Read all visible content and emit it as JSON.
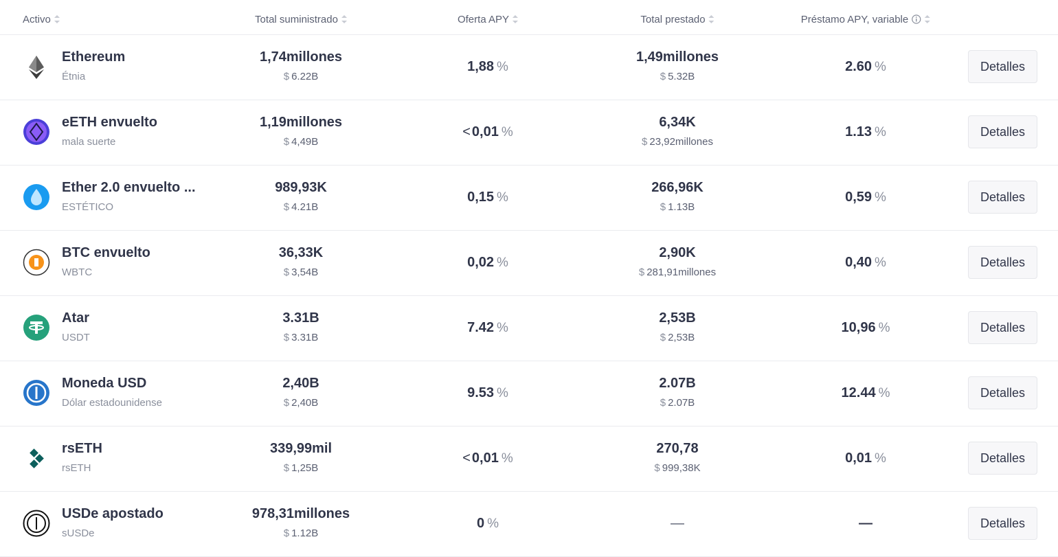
{
  "header": {
    "columns": [
      "Activo",
      "Total suministrado",
      "Oferta APY",
      "Total prestado",
      "Préstamo APY, variable"
    ]
  },
  "table": {
    "rows": [
      {
        "name": "Ethereum",
        "symbol": "Étnia",
        "supplied": "1,74millones",
        "supplied_usd": {
          "sign": "$",
          "value": "6.22B"
        },
        "supply_apy": {
          "value": "1,88",
          "unit": "%"
        },
        "borrowed": "1,49millones",
        "borrowed_usd": {
          "sign": "$",
          "value": "5.32B"
        },
        "borrow_apy": {
          "value": "2.60",
          "unit": "%"
        },
        "action": "Detalles"
      },
      {
        "name": "eETH envuelto",
        "symbol": "mala suerte",
        "supplied": "1,19millones",
        "supplied_usd": {
          "sign": "$",
          "value": "4,49B"
        },
        "supply_apy": {
          "prefix": "<",
          "value": "0,01",
          "unit": "%"
        },
        "borrowed": "6,34K",
        "borrowed_usd": {
          "sign": "$",
          "value": "23,92millones"
        },
        "borrow_apy": {
          "value": "1.13",
          "unit": "%"
        },
        "action": "Detalles"
      },
      {
        "name": "Ether 2.0 envuelto ...",
        "symbol": "ESTÉTICO",
        "supplied": "989,93K",
        "supplied_usd": {
          "sign": "$",
          "value": "4.21B"
        },
        "supply_apy": {
          "value": "0,15",
          "unit": "%"
        },
        "borrowed": "266,96K",
        "borrowed_usd": {
          "sign": "$",
          "value": "1.13B"
        },
        "borrow_apy": {
          "value": "0,59",
          "unit": "%"
        },
        "action": "Detalles"
      },
      {
        "name": "BTC envuelto",
        "symbol": "WBTC",
        "supplied": "36,33K",
        "supplied_usd": {
          "sign": "$",
          "value": "3,54B"
        },
        "supply_apy": {
          "value": "0,02",
          "unit": "%"
        },
        "borrowed": "2,90K",
        "borrowed_usd": {
          "sign": "$",
          "value": "281,91millones"
        },
        "borrow_apy": {
          "value": "0,40",
          "unit": "%"
        },
        "action": "Detalles"
      },
      {
        "name": "Atar",
        "symbol": "USDT",
        "supplied": "3.31B",
        "supplied_usd": {
          "sign": "$",
          "value": "3.31B"
        },
        "supply_apy": {
          "value": "7.42",
          "unit": "%"
        },
        "borrowed": "2,53B",
        "borrowed_usd": {
          "sign": "$",
          "value": "2,53B"
        },
        "borrow_apy": {
          "value": "10,96",
          "unit": "%"
        },
        "action": "Detalles"
      },
      {
        "name": "Moneda USD",
        "symbol": "Dólar estadounidense",
        "supplied": "2,40B",
        "supplied_usd": {
          "sign": "$",
          "value": "2,40B"
        },
        "supply_apy": {
          "value": "9.53",
          "unit": "%"
        },
        "borrowed": "2.07B",
        "borrowed_usd": {
          "sign": "$",
          "value": "2.07B"
        },
        "borrow_apy": {
          "value": "12.44",
          "unit": "%"
        },
        "action": "Detalles"
      },
      {
        "name": "rsETH",
        "symbol": "rsETH",
        "supplied": "339,99mil",
        "supplied_usd": {
          "sign": "$",
          "value": "1,25B"
        },
        "supply_apy": {
          "prefix": "<",
          "value": "0,01",
          "unit": "%"
        },
        "borrowed": "270,78",
        "borrowed_usd": {
          "sign": "$",
          "value": "999,38K"
        },
        "borrow_apy": {
          "value": "0,01",
          "unit": "%"
        },
        "action": "Detalles"
      },
      {
        "name": "USDe apostado",
        "symbol": "sUSDe",
        "supplied": "978,31millones",
        "supplied_usd": {
          "sign": "$",
          "value": "1.12B"
        },
        "supply_apy": {
          "value": "0",
          "unit": "%"
        },
        "borrowed": "—",
        "borrow_apy": {
          "value": "—"
        },
        "action": "Detalles"
      }
    ]
  }
}
